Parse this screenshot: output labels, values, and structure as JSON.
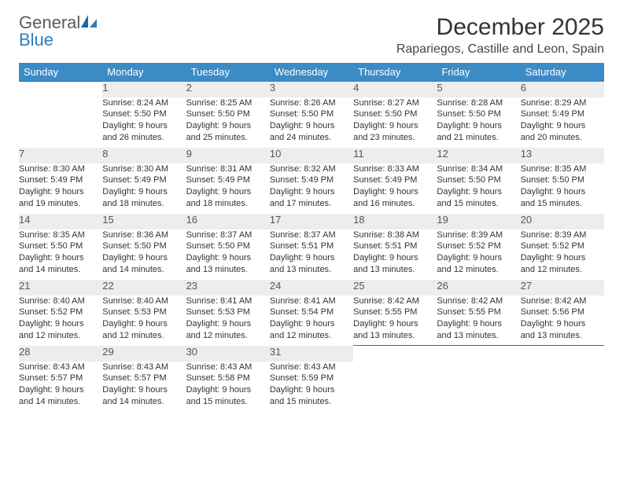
{
  "brand": {
    "name_a": "General",
    "name_b": "Blue"
  },
  "title": "December 2025",
  "location": "Rapariegos, Castille and Leon, Spain",
  "colors": {
    "header_bg": "#3b8bc6",
    "row_divider": "#2f6fa3",
    "daynum_bg": "#eceded",
    "brand_gray": "#5a5a5a",
    "brand_blue": "#2f7ebf"
  },
  "day_headers": [
    "Sunday",
    "Monday",
    "Tuesday",
    "Wednesday",
    "Thursday",
    "Friday",
    "Saturday"
  ],
  "weeks": [
    {
      "nums": [
        "",
        "1",
        "2",
        "3",
        "4",
        "5",
        "6"
      ],
      "cells": [
        null,
        {
          "sunrise": "Sunrise: 8:24 AM",
          "sunset": "Sunset: 5:50 PM",
          "day1": "Daylight: 9 hours",
          "day2": "and 26 minutes."
        },
        {
          "sunrise": "Sunrise: 8:25 AM",
          "sunset": "Sunset: 5:50 PM",
          "day1": "Daylight: 9 hours",
          "day2": "and 25 minutes."
        },
        {
          "sunrise": "Sunrise: 8:26 AM",
          "sunset": "Sunset: 5:50 PM",
          "day1": "Daylight: 9 hours",
          "day2": "and 24 minutes."
        },
        {
          "sunrise": "Sunrise: 8:27 AM",
          "sunset": "Sunset: 5:50 PM",
          "day1": "Daylight: 9 hours",
          "day2": "and 23 minutes."
        },
        {
          "sunrise": "Sunrise: 8:28 AM",
          "sunset": "Sunset: 5:50 PM",
          "day1": "Daylight: 9 hours",
          "day2": "and 21 minutes."
        },
        {
          "sunrise": "Sunrise: 8:29 AM",
          "sunset": "Sunset: 5:49 PM",
          "day1": "Daylight: 9 hours",
          "day2": "and 20 minutes."
        }
      ]
    },
    {
      "nums": [
        "7",
        "8",
        "9",
        "10",
        "11",
        "12",
        "13"
      ],
      "cells": [
        {
          "sunrise": "Sunrise: 8:30 AM",
          "sunset": "Sunset: 5:49 PM",
          "day1": "Daylight: 9 hours",
          "day2": "and 19 minutes."
        },
        {
          "sunrise": "Sunrise: 8:30 AM",
          "sunset": "Sunset: 5:49 PM",
          "day1": "Daylight: 9 hours",
          "day2": "and 18 minutes."
        },
        {
          "sunrise": "Sunrise: 8:31 AM",
          "sunset": "Sunset: 5:49 PM",
          "day1": "Daylight: 9 hours",
          "day2": "and 18 minutes."
        },
        {
          "sunrise": "Sunrise: 8:32 AM",
          "sunset": "Sunset: 5:49 PM",
          "day1": "Daylight: 9 hours",
          "day2": "and 17 minutes."
        },
        {
          "sunrise": "Sunrise: 8:33 AM",
          "sunset": "Sunset: 5:49 PM",
          "day1": "Daylight: 9 hours",
          "day2": "and 16 minutes."
        },
        {
          "sunrise": "Sunrise: 8:34 AM",
          "sunset": "Sunset: 5:50 PM",
          "day1": "Daylight: 9 hours",
          "day2": "and 15 minutes."
        },
        {
          "sunrise": "Sunrise: 8:35 AM",
          "sunset": "Sunset: 5:50 PM",
          "day1": "Daylight: 9 hours",
          "day2": "and 15 minutes."
        }
      ]
    },
    {
      "nums": [
        "14",
        "15",
        "16",
        "17",
        "18",
        "19",
        "20"
      ],
      "cells": [
        {
          "sunrise": "Sunrise: 8:35 AM",
          "sunset": "Sunset: 5:50 PM",
          "day1": "Daylight: 9 hours",
          "day2": "and 14 minutes."
        },
        {
          "sunrise": "Sunrise: 8:36 AM",
          "sunset": "Sunset: 5:50 PM",
          "day1": "Daylight: 9 hours",
          "day2": "and 14 minutes."
        },
        {
          "sunrise": "Sunrise: 8:37 AM",
          "sunset": "Sunset: 5:50 PM",
          "day1": "Daylight: 9 hours",
          "day2": "and 13 minutes."
        },
        {
          "sunrise": "Sunrise: 8:37 AM",
          "sunset": "Sunset: 5:51 PM",
          "day1": "Daylight: 9 hours",
          "day2": "and 13 minutes."
        },
        {
          "sunrise": "Sunrise: 8:38 AM",
          "sunset": "Sunset: 5:51 PM",
          "day1": "Daylight: 9 hours",
          "day2": "and 13 minutes."
        },
        {
          "sunrise": "Sunrise: 8:39 AM",
          "sunset": "Sunset: 5:52 PM",
          "day1": "Daylight: 9 hours",
          "day2": "and 12 minutes."
        },
        {
          "sunrise": "Sunrise: 8:39 AM",
          "sunset": "Sunset: 5:52 PM",
          "day1": "Daylight: 9 hours",
          "day2": "and 12 minutes."
        }
      ]
    },
    {
      "nums": [
        "21",
        "22",
        "23",
        "24",
        "25",
        "26",
        "27"
      ],
      "cells": [
        {
          "sunrise": "Sunrise: 8:40 AM",
          "sunset": "Sunset: 5:52 PM",
          "day1": "Daylight: 9 hours",
          "day2": "and 12 minutes."
        },
        {
          "sunrise": "Sunrise: 8:40 AM",
          "sunset": "Sunset: 5:53 PM",
          "day1": "Daylight: 9 hours",
          "day2": "and 12 minutes."
        },
        {
          "sunrise": "Sunrise: 8:41 AM",
          "sunset": "Sunset: 5:53 PM",
          "day1": "Daylight: 9 hours",
          "day2": "and 12 minutes."
        },
        {
          "sunrise": "Sunrise: 8:41 AM",
          "sunset": "Sunset: 5:54 PM",
          "day1": "Daylight: 9 hours",
          "day2": "and 12 minutes."
        },
        {
          "sunrise": "Sunrise: 8:42 AM",
          "sunset": "Sunset: 5:55 PM",
          "day1": "Daylight: 9 hours",
          "day2": "and 13 minutes."
        },
        {
          "sunrise": "Sunrise: 8:42 AM",
          "sunset": "Sunset: 5:55 PM",
          "day1": "Daylight: 9 hours",
          "day2": "and 13 minutes."
        },
        {
          "sunrise": "Sunrise: 8:42 AM",
          "sunset": "Sunset: 5:56 PM",
          "day1": "Daylight: 9 hours",
          "day2": "and 13 minutes."
        }
      ]
    },
    {
      "nums": [
        "28",
        "29",
        "30",
        "31",
        "",
        "",
        ""
      ],
      "cells": [
        {
          "sunrise": "Sunrise: 8:43 AM",
          "sunset": "Sunset: 5:57 PM",
          "day1": "Daylight: 9 hours",
          "day2": "and 14 minutes."
        },
        {
          "sunrise": "Sunrise: 8:43 AM",
          "sunset": "Sunset: 5:57 PM",
          "day1": "Daylight: 9 hours",
          "day2": "and 14 minutes."
        },
        {
          "sunrise": "Sunrise: 8:43 AM",
          "sunset": "Sunset: 5:58 PM",
          "day1": "Daylight: 9 hours",
          "day2": "and 15 minutes."
        },
        {
          "sunrise": "Sunrise: 8:43 AM",
          "sunset": "Sunset: 5:59 PM",
          "day1": "Daylight: 9 hours",
          "day2": "and 15 minutes."
        },
        null,
        null,
        null
      ]
    }
  ]
}
